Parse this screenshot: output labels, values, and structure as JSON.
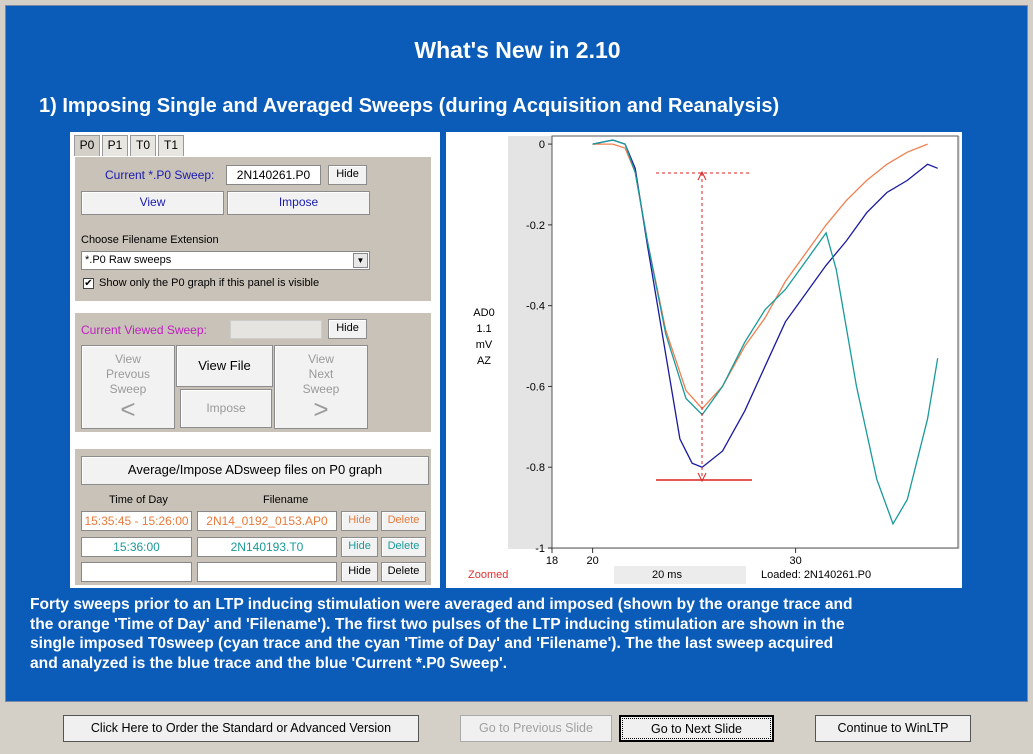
{
  "slide": {
    "title": "What's New in 2.10",
    "subtitle": "1) Imposing Single and Averaged Sweeps (during Acquisition and Reanalysis)",
    "description": [
      "Forty sweeps prior to an LTP inducing stimulation were averaged and imposed (shown by the orange trace and",
      "the orange 'Time of Day' and 'Filename').   The first two pulses of the LTP inducing stimulation are shown in the",
      "single imposed T0sweep (cyan trace and the cyan 'Time of Day' and 'Filename').   The the last sweep acquired",
      "and analyzed is the blue trace and the blue 'Current *.P0 Sweep'."
    ]
  },
  "panel": {
    "tabs": [
      "P0",
      "P1",
      "T0",
      "T1"
    ],
    "current_sweep_label": "Current *.P0 Sweep:",
    "current_sweep_value": "2N140261.P0",
    "hide": "Hide",
    "view": "View",
    "impose": "Impose",
    "choose_ext_label": "Choose Filename Extension",
    "ext_value": "*.P0   Raw sweeps",
    "show_only_label": "Show only the P0 graph if this panel is visible",
    "current_viewed_label": "Current Viewed Sweep:",
    "view_prev": [
      "View",
      "Prevous",
      "Sweep"
    ],
    "view_file": "View File",
    "view_next": [
      "View",
      "Next",
      "Sweep"
    ],
    "impose2": "Impose",
    "prev_arrow": "<",
    "next_arrow": ">",
    "average_btn": "Average/Impose ADsweep files on P0 graph",
    "col_time": "Time of Day",
    "col_file": "Filename",
    "delete": "Delete",
    "rows": [
      {
        "time": "15:35:45 - 15:26:00",
        "file": "2N14_0192_0153.AP0",
        "color": "#e87a3c"
      },
      {
        "time": "15:36:00",
        "file": "2N140193.T0",
        "color": "#1a9a9a"
      },
      {
        "time": "",
        "file": "",
        "color": "#000000"
      }
    ]
  },
  "chart_data": {
    "type": "line",
    "y_axis_label": [
      "AD0",
      "1.1",
      "mV",
      "AZ"
    ],
    "yticks": [
      "0",
      "-0.2",
      "-0.4",
      "-0.6",
      "-0.8",
      "-1"
    ],
    "xticks": [
      "18",
      "20",
      "30"
    ],
    "ylim": [
      -1,
      0.02
    ],
    "xlim": [
      18,
      38
    ],
    "status_left": "Zoomed",
    "status_mid": "20 ms",
    "status_right": "Loaded: 2N140261.P0",
    "series": [
      {
        "color": "#f08050",
        "points": [
          [
            20,
            0
          ],
          [
            21,
            0
          ],
          [
            21.6,
            -0.01
          ],
          [
            22.1,
            -0.07
          ],
          [
            22.7,
            -0.24
          ],
          [
            23.6,
            -0.46
          ],
          [
            24.6,
            -0.61
          ],
          [
            25.4,
            -0.655
          ],
          [
            26.4,
            -0.6
          ],
          [
            27.5,
            -0.5
          ],
          [
            28.5,
            -0.43
          ],
          [
            29.5,
            -0.34
          ],
          [
            30.5,
            -0.27
          ],
          [
            31.5,
            -0.2
          ],
          [
            32.5,
            -0.14
          ],
          [
            33.5,
            -0.09
          ],
          [
            34.5,
            -0.05
          ],
          [
            35.5,
            -0.02
          ],
          [
            36.5,
            0
          ]
        ]
      },
      {
        "color": "#1a1aa0",
        "points": [
          [
            20,
            0
          ],
          [
            21,
            0.01
          ],
          [
            21.6,
            0
          ],
          [
            22.1,
            -0.06
          ],
          [
            22.7,
            -0.25
          ],
          [
            23.6,
            -0.52
          ],
          [
            24.3,
            -0.73
          ],
          [
            24.9,
            -0.79
          ],
          [
            25.4,
            -0.8
          ],
          [
            26.4,
            -0.76
          ],
          [
            27.5,
            -0.66
          ],
          [
            28.5,
            -0.55
          ],
          [
            29.5,
            -0.44
          ],
          [
            30.5,
            -0.37
          ],
          [
            31.5,
            -0.3
          ],
          [
            32.5,
            -0.24
          ],
          [
            33.5,
            -0.17
          ],
          [
            34.5,
            -0.12
          ],
          [
            35.5,
            -0.09
          ],
          [
            36.5,
            -0.05
          ],
          [
            37,
            -0.06
          ]
        ]
      },
      {
        "color": "#1a9a9a",
        "points": [
          [
            20,
            0
          ],
          [
            21,
            0.01
          ],
          [
            21.6,
            0
          ],
          [
            22.1,
            -0.07
          ],
          [
            22.7,
            -0.24
          ],
          [
            23.6,
            -0.47
          ],
          [
            24.6,
            -0.63
          ],
          [
            25.4,
            -0.67
          ],
          [
            26.4,
            -0.6
          ],
          [
            27.5,
            -0.49
          ],
          [
            28.5,
            -0.41
          ],
          [
            29.5,
            -0.36
          ],
          [
            30.5,
            -0.29
          ],
          [
            31.5,
            -0.22
          ],
          [
            32,
            -0.31
          ],
          [
            33,
            -0.6
          ],
          [
            34,
            -0.83
          ],
          [
            34.8,
            -0.94
          ],
          [
            35.5,
            -0.88
          ],
          [
            36.5,
            -0.68
          ],
          [
            37,
            -0.53
          ]
        ]
      }
    ]
  },
  "buttons": {
    "order": "Click Here to Order the Standard or Advanced Version",
    "prev": "Go to Previous Slide",
    "next": "Go to Next Slide",
    "continue": "Continue to WinLTP"
  }
}
